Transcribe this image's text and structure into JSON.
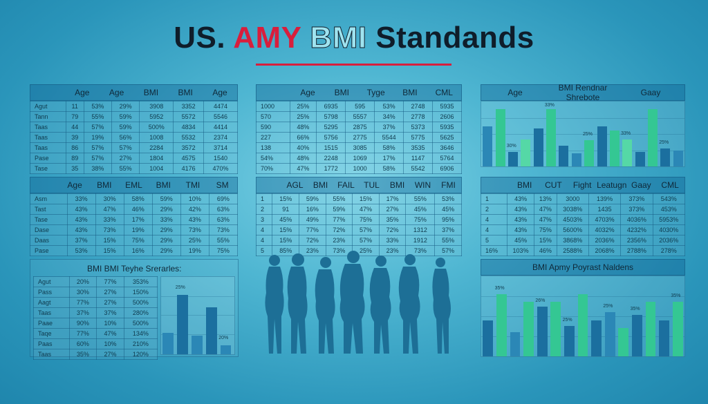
{
  "title": {
    "part1": "US.",
    "part2": " AMY ",
    "part3": "BMI",
    "part4": " Standands"
  },
  "panel1": {
    "headers": [
      "",
      "Age",
      "Age",
      "BMI",
      "BMI",
      "Age"
    ],
    "rows": [
      [
        "Agut",
        "11",
        "53%",
        "29%",
        "3908",
        "3352",
        "4474"
      ],
      [
        "Tann",
        "79",
        "55%",
        "59%",
        "5952",
        "5572",
        "5546"
      ],
      [
        "Taas",
        "44",
        "57%",
        "59%",
        "500%",
        "4834",
        "4414"
      ],
      [
        "Taas",
        "39",
        "19%",
        "56%",
        "1008",
        "5532",
        "2374"
      ],
      [
        "Taas",
        "86",
        "57%",
        "57%",
        "2284",
        "3572",
        "3714"
      ],
      [
        "Pase",
        "89",
        "57%",
        "27%",
        "1804",
        "4575",
        "1540"
      ],
      [
        "Tase",
        "35",
        "38%",
        "55%",
        "1004",
        "4176",
        "470%"
      ]
    ]
  },
  "panel2": {
    "headers": [
      "",
      "Age",
      "BMI",
      "Tyge",
      "BMI",
      "CML"
    ],
    "rows": [
      [
        "1000",
        "25%",
        "6935",
        "595",
        "53%",
        "2748",
        "5935"
      ],
      [
        "570",
        "25%",
        "5798",
        "5557",
        "34%",
        "2778",
        "2606"
      ],
      [
        "590",
        "48%",
        "5295",
        "2875",
        "37%",
        "5373",
        "5935"
      ],
      [
        "227",
        "66%",
        "5756",
        "2775",
        "5544",
        "5775",
        "5625"
      ],
      [
        "138",
        "40%",
        "1515",
        "3085",
        "58%",
        "3535",
        "3646"
      ],
      [
        "54%",
        "48%",
        "2248",
        "1069",
        "17%",
        "1147",
        "5764"
      ],
      [
        "70%",
        "47%",
        "1772",
        "1000",
        "58%",
        "5542",
        "6906"
      ]
    ]
  },
  "panel3": {
    "headers": [
      "Age",
      "BMI Rendnar Shrebote",
      "Gaay"
    ],
    "bars": [
      {
        "v": 0.62,
        "c": "md"
      },
      {
        "v": 0.88,
        "c": "gr"
      },
      {
        "v": 0.22,
        "c": "dk"
      },
      {
        "v": 0.42,
        "c": "lg"
      },
      {
        "v": 0.58,
        "c": "dk"
      },
      {
        "v": 0.88,
        "c": "gr"
      },
      {
        "v": 0.32,
        "c": "dk"
      },
      {
        "v": 0.2,
        "c": "md"
      },
      {
        "v": 0.4,
        "c": "gr"
      },
      {
        "v": 0.62,
        "c": "dk"
      },
      {
        "v": 0.55,
        "c": "gr"
      },
      {
        "v": 0.42,
        "c": "lg"
      },
      {
        "v": 0.22,
        "c": "dk"
      },
      {
        "v": 0.88,
        "c": "gr"
      },
      {
        "v": 0.28,
        "c": "dk"
      },
      {
        "v": 0.24,
        "c": "md"
      }
    ],
    "labels": [
      "30%",
      "33%",
      "25%",
      "33%",
      "25%"
    ]
  },
  "panel4": {
    "headers": [
      "",
      "Age",
      "BMI",
      "EML",
      "BMI",
      "TMI",
      "SM"
    ],
    "rows": [
      [
        "Asm",
        "33%",
        "30%",
        "58%",
        "59%",
        "10%",
        "69%"
      ],
      [
        "Tast",
        "43%",
        "47%",
        "46%",
        "29%",
        "42%",
        "63%"
      ],
      [
        "Tase",
        "43%",
        "33%",
        "17%",
        "33%",
        "43%",
        "63%"
      ],
      [
        "Dase",
        "43%",
        "73%",
        "19%",
        "29%",
        "73%",
        "73%"
      ],
      [
        "Daas",
        "37%",
        "15%",
        "75%",
        "29%",
        "25%",
        "55%"
      ],
      [
        "Pase",
        "53%",
        "15%",
        "16%",
        "29%",
        "19%",
        "75%"
      ]
    ]
  },
  "panel5": {
    "headers": [
      "",
      "AGL",
      "BMI",
      "FAIL",
      "TUL",
      "BMI",
      "WIN",
      "FMI"
    ],
    "rows": [
      [
        "1",
        "15%",
        "59%",
        "55%",
        "15%",
        "17%",
        "55%",
        "53%"
      ],
      [
        "2",
        "91",
        "16%",
        "59%",
        "47%",
        "27%",
        "45%",
        "45%"
      ],
      [
        "3",
        "45%",
        "49%",
        "77%",
        "75%",
        "35%",
        "75%",
        "95%"
      ],
      [
        "4",
        "15%",
        "77%",
        "72%",
        "57%",
        "72%",
        "1312",
        "37%"
      ],
      [
        "4",
        "15%",
        "72%",
        "23%",
        "57%",
        "33%",
        "1912",
        "55%"
      ],
      [
        "5",
        "85%",
        "23%",
        "73%",
        "25%",
        "23%",
        "73%",
        "57%"
      ]
    ]
  },
  "panel6": {
    "headers": [
      "",
      "BMI",
      "CUT",
      "Fight",
      "Leatugn",
      "Gaay",
      "CML"
    ],
    "rows": [
      [
        "1",
        "43%",
        "13%",
        "3000",
        "139%",
        "373%",
        "543%"
      ],
      [
        "2",
        "43%",
        "47%",
        "3038%",
        "1435",
        "373%",
        "453%"
      ],
      [
        "4",
        "43%",
        "47%",
        "4503%",
        "4703%",
        "4036%",
        "5953%"
      ],
      [
        "4",
        "43%",
        "75%",
        "5600%",
        "4032%",
        "4232%",
        "4030%"
      ],
      [
        "5",
        "45%",
        "15%",
        "3868%",
        "2036%",
        "2356%",
        "2036%"
      ],
      [
        "16%",
        "103%",
        "46%",
        "2588%",
        "2068%",
        "2788%",
        "278%"
      ]
    ]
  },
  "panel7": {
    "title": "BMI BMI Teyhe Srerarles:",
    "rows": [
      [
        "Agut",
        "20%",
        "77%",
        "353%"
      ],
      [
        "Pass",
        "30%",
        "27%",
        "150%"
      ],
      [
        "Aagt",
        "77%",
        "27%",
        "500%"
      ],
      [
        "Taas",
        "37%",
        "37%",
        "280%"
      ],
      [
        "Paae",
        "90%",
        "10%",
        "500%"
      ],
      [
        "Taqe",
        "77%",
        "47%",
        "134%"
      ],
      [
        "Paas",
        "60%",
        "10%",
        "210%"
      ],
      [
        "Taas",
        "35%",
        "27%",
        "120%"
      ]
    ],
    "bars": [
      {
        "v": 0.28,
        "c": "md"
      },
      {
        "v": 0.78,
        "c": "dk"
      },
      {
        "v": 0.25,
        "c": "md"
      },
      {
        "v": 0.62,
        "c": "dk"
      },
      {
        "v": 0.12,
        "c": "md"
      }
    ],
    "labels": [
      "25%",
      "20%"
    ]
  },
  "panel8": {
    "title": "BMI Apmy Poyrast Naldens",
    "bars": [
      {
        "v": 0.45,
        "c": "dk"
      },
      {
        "v": 0.78,
        "c": "gr"
      },
      {
        "v": 0.3,
        "c": "md"
      },
      {
        "v": 0.68,
        "c": "gr"
      },
      {
        "v": 0.62,
        "c": "dk"
      },
      {
        "v": 0.68,
        "c": "gr"
      },
      {
        "v": 0.38,
        "c": "dk"
      },
      {
        "v": 0.78,
        "c": "gr"
      },
      {
        "v": 0.45,
        "c": "dk"
      },
      {
        "v": 0.55,
        "c": "md"
      },
      {
        "v": 0.35,
        "c": "gr"
      },
      {
        "v": 0.52,
        "c": "dk"
      },
      {
        "v": 0.68,
        "c": "gr"
      },
      {
        "v": 0.45,
        "c": "dk"
      },
      {
        "v": 0.68,
        "c": "gr"
      }
    ],
    "labels": [
      "35%",
      "26%",
      "25%",
      "25%",
      "35%",
      "35%"
    ]
  }
}
